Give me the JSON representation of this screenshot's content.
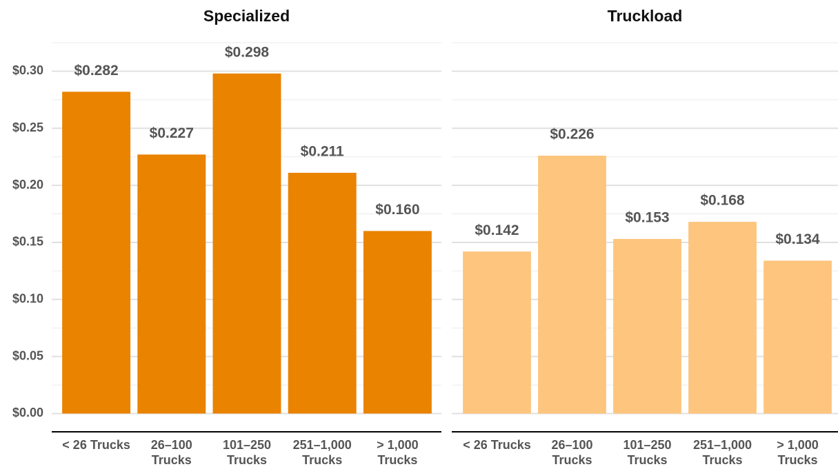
{
  "chart_data": [
    {
      "type": "bar",
      "title": "Specialized",
      "categories": [
        "< 26 Trucks",
        "26–100\nTrucks",
        "101–250\nTrucks",
        "251–1,000\nTrucks",
        "> 1,000\nTrucks"
      ],
      "values": [
        0.282,
        0.227,
        0.298,
        0.211,
        0.16
      ],
      "value_labels": [
        "$0.282",
        "$0.227",
        "$0.298",
        "$0.211",
        "$0.160"
      ],
      "color": "#e98300",
      "ylim": [
        -0.016,
        0.325
      ],
      "yticks": [
        {
          "value": 0,
          "label": "$0.00"
        },
        {
          "value": 0.05,
          "label": "$0.05"
        },
        {
          "value": 0.1,
          "label": "$0.10"
        },
        {
          "value": 0.15,
          "label": "$0.15"
        },
        {
          "value": 0.2,
          "label": "$0.20"
        },
        {
          "value": 0.25,
          "label": "$0.25"
        },
        {
          "value": 0.3,
          "label": "$0.30"
        }
      ],
      "minor_yticks": [
        0.025,
        0.075,
        0.125,
        0.175,
        0.225,
        0.275,
        0.325
      ],
      "grid": true
    },
    {
      "type": "bar",
      "title": "Truckload",
      "categories": [
        "< 26 Trucks",
        "26–100\nTrucks",
        "101–250\nTrucks",
        "251–1,000\nTrucks",
        "> 1,000\nTrucks"
      ],
      "values": [
        0.142,
        0.226,
        0.153,
        0.168,
        0.134
      ],
      "value_labels": [
        "$0.142",
        "$0.226",
        "$0.153",
        "$0.168",
        "$0.134"
      ],
      "color": "#fdc57d",
      "ylim": [
        -0.016,
        0.325
      ],
      "yticks": [
        0,
        0.05,
        0.1,
        0.15,
        0.2,
        0.25,
        0.3
      ],
      "minor_yticks": [
        0.025,
        0.075,
        0.125,
        0.175,
        0.225,
        0.275,
        0.325
      ],
      "grid": true
    }
  ]
}
